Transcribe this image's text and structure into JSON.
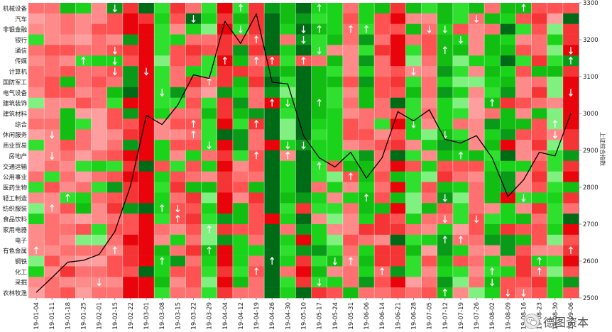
{
  "chart_data": {
    "type": "heatmap",
    "title": "",
    "y_right_label": "上证综合指数",
    "y_right_ticks": [
      2500,
      2600,
      2700,
      2800,
      2900,
      3000,
      3100,
      3200,
      3300
    ],
    "ylim": [
      2500,
      3300
    ],
    "categories_y": [
      "机械设备",
      "汽车",
      "非银金融",
      "银行",
      "通信",
      "传媒",
      "计算机",
      "国防军工",
      "电气设备",
      "建筑装饰",
      "建筑材料",
      "综合",
      "休闲服务",
      "商业贸易",
      "房地产",
      "交通运输",
      "公用事业",
      "医药生物",
      "轻工制造",
      "纺织服装",
      "食品饮料",
      "家用电器",
      "电子",
      "有色金属",
      "钢铁",
      "化工",
      "采掘",
      "农林牧渔"
    ],
    "categories_x": [
      "19-01-04",
      "19-01-11",
      "19-01-18",
      "19-01-25",
      "19-02-01",
      "19-02-15",
      "19-02-22",
      "19-03-01",
      "19-03-08",
      "19-03-15",
      "19-03-22",
      "19-03-29",
      "19-04-04",
      "19-04-12",
      "19-04-19",
      "19-04-26",
      "19-04-30",
      "19-05-10",
      "19-05-17",
      "19-05-24",
      "19-05-31",
      "19-06-06",
      "19-06-14",
      "19-06-21",
      "19-06-28",
      "19-07-05",
      "19-07-12",
      "19-07-19",
      "19-07-26",
      "19-08-02",
      "19-08-09",
      "19-08-16",
      "19-08-23",
      "19-08-30",
      "19-09-06"
    ],
    "index_line": [
      2515,
      2555,
      2597,
      2602,
      2618,
      2680,
      2805,
      2995,
      2970,
      3023,
      3105,
      3095,
      3250,
      3190,
      3270,
      3085,
      3080,
      2940,
      2880,
      2855,
      2895,
      2825,
      2880,
      3005,
      2980,
      3010,
      2930,
      2920,
      2940,
      2880,
      2775,
      2820,
      2895,
      2885,
      3000
    ],
    "colors": {
      "line": "#000000",
      "axis": "#666666",
      "red_dark": "#e8040a",
      "green_dark": "#006b17"
    }
  },
  "watermark": {
    "text": "德图资本",
    "icon": "wechat-icon"
  }
}
